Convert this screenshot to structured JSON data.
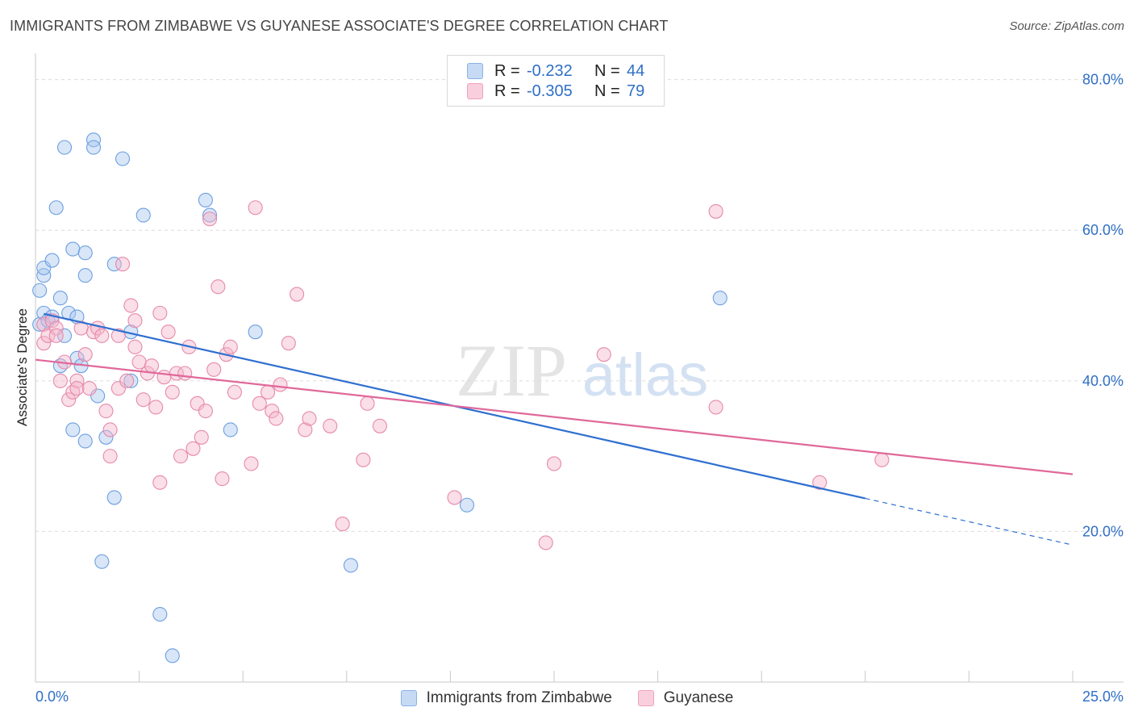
{
  "header": {
    "title": "IMMIGRANTS FROM ZIMBABWE VS GUYANESE ASSOCIATE'S DEGREE CORRELATION CHART",
    "source": "Source: ZipAtlas.com"
  },
  "watermark": {
    "zip": "ZIP",
    "atlas": "atlas"
  },
  "legend": {
    "rows": [
      {
        "r_label": "R =",
        "r_value": "-0.232",
        "n_label": "N =",
        "n_value": "44",
        "color": "#a9c8ef"
      },
      {
        "r_label": "R =",
        "r_value": "-0.305",
        "n_label": "N =",
        "n_value": "79",
        "color": "#f5b6cb"
      }
    ]
  },
  "chart_data": {
    "type": "scatter",
    "title": "IMMIGRANTS FROM ZIMBABWE VS GUYANESE ASSOCIATE'S DEGREE CORRELATION CHART",
    "xlabel": "",
    "ylabel": "Associate's Degree",
    "xlim": [
      0,
      25
    ],
    "ylim": [
      0,
      82
    ],
    "x_tick_labels": [
      "0.0%",
      "25.0%"
    ],
    "y_ticks": [
      20,
      40,
      60,
      80
    ],
    "y_tick_labels": [
      "20.0%",
      "40.0%",
      "60.0%",
      "80.0%"
    ],
    "grid": true,
    "legend_position": "top-center",
    "series": [
      {
        "name": "Immigrants from Zimbabwe",
        "color": "#6d9fe0",
        "fill": "#a9c8ef",
        "trend": {
          "x0": 0.2,
          "y0": 48.9,
          "x1": 25.0,
          "y1": 18.2,
          "solid_until": 20.0
        },
        "points": [
          [
            0.1,
            47.5
          ],
          [
            0.1,
            52.0
          ],
          [
            0.2,
            49.0
          ],
          [
            0.2,
            54.0
          ],
          [
            0.2,
            55.0
          ],
          [
            0.3,
            48.0
          ],
          [
            0.4,
            48.5
          ],
          [
            0.4,
            56.0
          ],
          [
            0.5,
            63.0
          ],
          [
            0.6,
            51.0
          ],
          [
            0.6,
            42.0
          ],
          [
            0.7,
            71.0
          ],
          [
            0.7,
            46.0
          ],
          [
            0.8,
            49.0
          ],
          [
            0.9,
            33.5
          ],
          [
            0.9,
            57.5
          ],
          [
            1.0,
            48.5
          ],
          [
            1.0,
            43.0
          ],
          [
            1.1,
            42.0
          ],
          [
            1.2,
            32.0
          ],
          [
            1.2,
            57.0
          ],
          [
            1.2,
            54.0
          ],
          [
            1.4,
            72.0
          ],
          [
            1.4,
            71.0
          ],
          [
            1.5,
            38.0
          ],
          [
            1.6,
            16.0
          ],
          [
            1.7,
            32.5
          ],
          [
            1.9,
            55.5
          ],
          [
            1.9,
            24.5
          ],
          [
            2.1,
            69.5
          ],
          [
            2.3,
            40.0
          ],
          [
            2.3,
            46.5
          ],
          [
            2.6,
            62.0
          ],
          [
            3.0,
            9.0
          ],
          [
            3.3,
            3.5
          ],
          [
            4.1,
            64.0
          ],
          [
            4.2,
            62.0
          ],
          [
            4.7,
            33.5
          ],
          [
            5.3,
            46.5
          ],
          [
            7.6,
            15.5
          ],
          [
            10.4,
            23.5
          ],
          [
            16.5,
            51.0
          ]
        ]
      },
      {
        "name": "Guyanese",
        "color": "#e68aaa",
        "fill": "#f5b6cb",
        "trend": {
          "x0": 0.0,
          "y0": 42.8,
          "x1": 25.0,
          "y1": 27.6
        },
        "points": [
          [
            0.2,
            45.0
          ],
          [
            0.2,
            47.5
          ],
          [
            0.3,
            46.0
          ],
          [
            0.4,
            48.0
          ],
          [
            0.5,
            47.0
          ],
          [
            0.5,
            46.0
          ],
          [
            0.6,
            40.0
          ],
          [
            0.7,
            42.5
          ],
          [
            0.8,
            37.5
          ],
          [
            0.9,
            38.5
          ],
          [
            1.0,
            40.0
          ],
          [
            1.0,
            39.0
          ],
          [
            1.1,
            47.0
          ],
          [
            1.2,
            43.5
          ],
          [
            1.3,
            39.0
          ],
          [
            1.4,
            46.5
          ],
          [
            1.5,
            47.0
          ],
          [
            1.6,
            46.0
          ],
          [
            1.7,
            36.0
          ],
          [
            1.8,
            33.5
          ],
          [
            1.8,
            30.0
          ],
          [
            2.0,
            39.0
          ],
          [
            2.0,
            46.0
          ],
          [
            2.1,
            55.5
          ],
          [
            2.2,
            40.0
          ],
          [
            2.3,
            50.0
          ],
          [
            2.4,
            48.0
          ],
          [
            2.4,
            44.5
          ],
          [
            2.5,
            42.5
          ],
          [
            2.6,
            37.5
          ],
          [
            2.7,
            41.0
          ],
          [
            2.8,
            42.0
          ],
          [
            2.9,
            36.5
          ],
          [
            3.0,
            26.5
          ],
          [
            3.0,
            49.0
          ],
          [
            3.1,
            40.5
          ],
          [
            3.2,
            46.5
          ],
          [
            3.3,
            38.5
          ],
          [
            3.4,
            41.0
          ],
          [
            3.5,
            30.0
          ],
          [
            3.6,
            41.0
          ],
          [
            3.7,
            44.5
          ],
          [
            3.8,
            31.0
          ],
          [
            3.9,
            37.0
          ],
          [
            4.0,
            32.5
          ],
          [
            4.1,
            36.0
          ],
          [
            4.2,
            61.5
          ],
          [
            4.3,
            41.5
          ],
          [
            4.4,
            52.5
          ],
          [
            4.5,
            27.0
          ],
          [
            4.6,
            43.5
          ],
          [
            4.7,
            44.5
          ],
          [
            4.8,
            38.5
          ],
          [
            5.2,
            29.0
          ],
          [
            5.3,
            63.0
          ],
          [
            5.4,
            37.0
          ],
          [
            5.6,
            38.5
          ],
          [
            5.7,
            36.0
          ],
          [
            5.8,
            35.0
          ],
          [
            5.9,
            39.5
          ],
          [
            6.1,
            45.0
          ],
          [
            6.3,
            51.5
          ],
          [
            6.5,
            33.5
          ],
          [
            6.6,
            35.0
          ],
          [
            7.1,
            34.0
          ],
          [
            7.4,
            21.0
          ],
          [
            7.9,
            29.5
          ],
          [
            8.0,
            37.0
          ],
          [
            8.3,
            34.0
          ],
          [
            10.1,
            24.5
          ],
          [
            12.3,
            18.5
          ],
          [
            12.5,
            29.0
          ],
          [
            13.7,
            43.5
          ],
          [
            16.4,
            36.5
          ],
          [
            16.4,
            62.5
          ],
          [
            18.9,
            26.5
          ],
          [
            20.4,
            29.5
          ]
        ]
      }
    ]
  },
  "bottom_legend": {
    "items": [
      {
        "label": "Immigrants from Zimbabwe",
        "color": "#a9c8ef"
      },
      {
        "label": "Guyanese",
        "color": "#f5b6cb"
      }
    ]
  },
  "colors": {
    "axis_label": "#2f6fc6",
    "grid": "#dcdcdc",
    "axis": "#c8c8c8"
  }
}
